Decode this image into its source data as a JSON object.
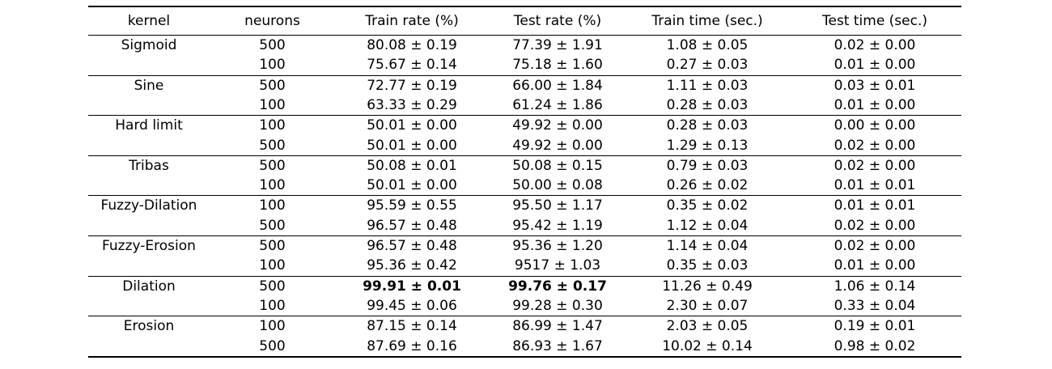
{
  "table": {
    "headers": {
      "kernel": "kernel",
      "neurons": "neurons",
      "train_rate": "Train rate (%)",
      "test_rate": "Test rate (%)",
      "train_time": "Train time (sec.)",
      "test_time": "Test time (sec.)"
    },
    "groups": [
      {
        "kernel": "Sigmoid",
        "rows": [
          {
            "neurons": "500",
            "train_rate": "80.08 ± 0.19",
            "test_rate": "77.39 ± 1.91",
            "train_time": "1.08 ± 0.05",
            "test_time": "0.02 ± 0.00"
          },
          {
            "neurons": "100",
            "train_rate": "75.67 ± 0.14",
            "test_rate": "75.18 ± 1.60",
            "train_time": "0.27 ± 0.03",
            "test_time": "0.01 ± 0.00"
          }
        ]
      },
      {
        "kernel": "Sine",
        "rows": [
          {
            "neurons": "500",
            "train_rate": "72.77 ± 0.19",
            "test_rate": "66.00 ± 1.84",
            "train_time": "1.11 ± 0.03",
            "test_time": "0.03 ± 0.01"
          },
          {
            "neurons": "100",
            "train_rate": "63.33 ± 0.29",
            "test_rate": "61.24 ± 1.86",
            "train_time": "0.28 ± 0.03",
            "test_time": "0.01 ± 0.00"
          }
        ]
      },
      {
        "kernel": "Hard limit",
        "rows": [
          {
            "neurons": "100",
            "train_rate": "50.01 ± 0.00",
            "test_rate": "49.92 ± 0.00",
            "train_time": "0.28 ± 0.03",
            "test_time": "0.00 ± 0.00"
          },
          {
            "neurons": "500",
            "train_rate": "50.01 ± 0.00",
            "test_rate": "49.92 ± 0.00",
            "train_time": "1.29 ± 0.13",
            "test_time": "0.02 ± 0.00"
          }
        ]
      },
      {
        "kernel": "Tribas",
        "rows": [
          {
            "neurons": "500",
            "train_rate": "50.08 ± 0.01",
            "test_rate": "50.08 ± 0.15",
            "train_time": "0.79 ± 0.03",
            "test_time": "0.02 ± 0.00"
          },
          {
            "neurons": "100",
            "train_rate": "50.01 ± 0.00",
            "test_rate": "50.00 ± 0.08",
            "train_time": "0.26 ± 0.02",
            "test_time": "0.01 ± 0.01"
          }
        ]
      },
      {
        "kernel": "Fuzzy-Dilation",
        "rows": [
          {
            "neurons": "100",
            "train_rate": "95.59 ± 0.55",
            "test_rate": "95.50 ± 1.17",
            "train_time": "0.35 ± 0.02",
            "test_time": "0.01 ± 0.01"
          },
          {
            "neurons": "500",
            "train_rate": "96.57 ± 0.48",
            "test_rate": "95.42 ± 1.19",
            "train_time": "1.12 ± 0.04",
            "test_time": "0.02 ± 0.00"
          }
        ]
      },
      {
        "kernel": "Fuzzy-Erosion",
        "rows": [
          {
            "neurons": "500",
            "train_rate": "96.57 ± 0.48",
            "test_rate": "95.36 ± 1.20",
            "train_time": "1.14 ± 0.04",
            "test_time": "0.02 ± 0.00"
          },
          {
            "neurons": "100",
            "train_rate": "95.36 ± 0.42",
            "test_rate": "9517 ± 1.03",
            "train_time": "0.35 ± 0.03",
            "test_time": "0.01 ± 0.00"
          }
        ]
      },
      {
        "kernel": "Dilation",
        "rows": [
          {
            "neurons": "500",
            "train_rate": "99.91 ± 0.01",
            "test_rate": "99.76 ± 0.17",
            "train_time": "11.26 ± 0.49",
            "test_time": "1.06 ± 0.14",
            "bold": [
              "train_rate",
              "test_rate"
            ]
          },
          {
            "neurons": "100",
            "train_rate": "99.45 ± 0.06",
            "test_rate": "99.28 ± 0.30",
            "train_time": "2.30 ± 0.07",
            "test_time": "0.33 ± 0.04"
          }
        ]
      },
      {
        "kernel": "Erosion",
        "rows": [
          {
            "neurons": "100",
            "train_rate": "87.15 ± 0.14",
            "test_rate": "86.99 ± 1.47",
            "train_time": "2.03 ± 0.05",
            "test_time": "0.19 ± 0.01"
          },
          {
            "neurons": "500",
            "train_rate": "87.69 ± 0.16",
            "test_rate": "86.93 ± 1.67",
            "train_time": "10.02 ± 0.14",
            "test_time": "0.98 ± 0.02"
          }
        ]
      }
    ]
  }
}
